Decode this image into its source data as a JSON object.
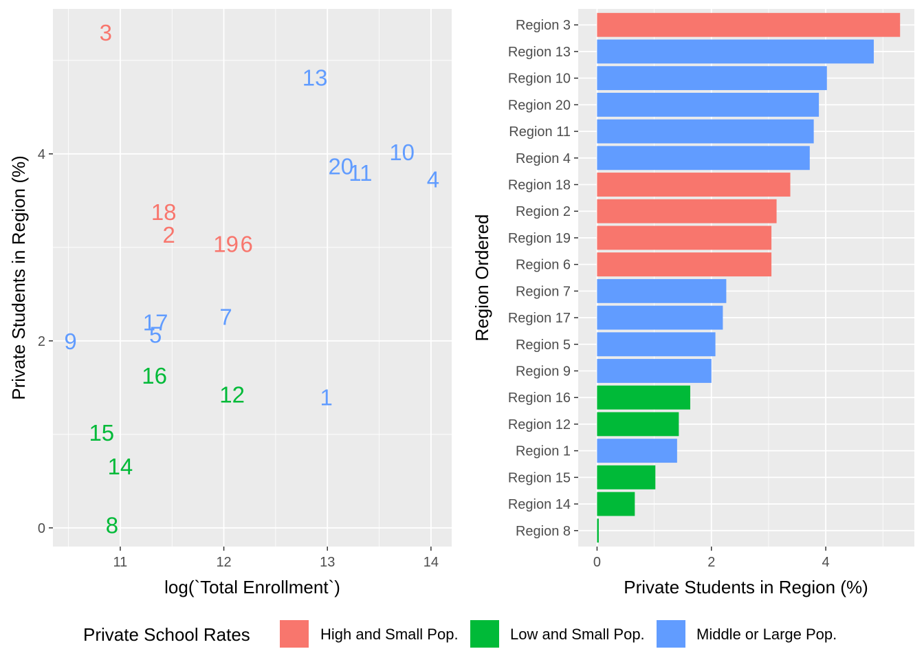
{
  "groups": [
    {
      "name": "High and Small Pop.",
      "color": "#F8766D"
    },
    {
      "name": "Low and Small Pop.",
      "color": "#00BA38"
    },
    {
      "name": "Middle or Large Pop.",
      "color": "#619CFF"
    }
  ],
  "legend": {
    "title": "Private School Rates",
    "position": "bottom"
  },
  "chart_data": [
    {
      "type": "scatter",
      "geom": "text",
      "xlabel": "log(`Total Enrollment`)",
      "ylabel": "Private Students in Region (%)",
      "xlim": [
        10.35,
        14.2
      ],
      "ylim": [
        -0.2,
        5.55
      ],
      "x_ticks": [
        11,
        12,
        13,
        14
      ],
      "y_ticks": [
        0,
        2,
        4
      ],
      "grid": true,
      "points": [
        {
          "label": "3",
          "x": 10.86,
          "y": 5.3,
          "group": 0
        },
        {
          "label": "13",
          "x": 12.88,
          "y": 4.82,
          "group": 2
        },
        {
          "label": "10",
          "x": 13.72,
          "y": 4.02,
          "group": 2
        },
        {
          "label": "20",
          "x": 13.13,
          "y": 3.87,
          "group": 2
        },
        {
          "label": "11",
          "x": 13.32,
          "y": 3.8,
          "group": 2
        },
        {
          "label": "4",
          "x": 14.02,
          "y": 3.73,
          "group": 2
        },
        {
          "label": "18",
          "x": 11.42,
          "y": 3.38,
          "group": 0
        },
        {
          "label": "2",
          "x": 11.47,
          "y": 3.14,
          "group": 0
        },
        {
          "label": "19",
          "x": 12.02,
          "y": 3.04,
          "group": 0
        },
        {
          "label": "6",
          "x": 12.22,
          "y": 3.04,
          "group": 0
        },
        {
          "label": "7",
          "x": 12.02,
          "y": 2.26,
          "group": 2
        },
        {
          "label": "17",
          "x": 11.34,
          "y": 2.2,
          "group": 2
        },
        {
          "label": "5",
          "x": 11.34,
          "y": 2.07,
          "group": 2
        },
        {
          "label": "9",
          "x": 10.52,
          "y": 2.0,
          "group": 2
        },
        {
          "label": "16",
          "x": 11.33,
          "y": 1.63,
          "group": 1
        },
        {
          "label": "12",
          "x": 12.08,
          "y": 1.43,
          "group": 1
        },
        {
          "label": "1",
          "x": 12.99,
          "y": 1.4,
          "group": 2
        },
        {
          "label": "15",
          "x": 10.82,
          "y": 1.02,
          "group": 1
        },
        {
          "label": "14",
          "x": 11.0,
          "y": 0.66,
          "group": 1
        },
        {
          "label": "8",
          "x": 10.92,
          "y": 0.03,
          "group": 1
        }
      ]
    },
    {
      "type": "bar",
      "orientation": "horizontal",
      "xlabel": "Private Students in Region (%)",
      "ylabel": "Region Ordered",
      "xlim": [
        -0.33,
        5.55
      ],
      "x_ticks": [
        0,
        2,
        4
      ],
      "grid": true,
      "bars": [
        {
          "category": "Region 3",
          "value": 5.3,
          "group": 0
        },
        {
          "category": "Region 13",
          "value": 4.84,
          "group": 2
        },
        {
          "category": "Region 10",
          "value": 4.02,
          "group": 2
        },
        {
          "category": "Region 20",
          "value": 3.88,
          "group": 2
        },
        {
          "category": "Region 11",
          "value": 3.79,
          "group": 2
        },
        {
          "category": "Region 4",
          "value": 3.72,
          "group": 2
        },
        {
          "category": "Region 18",
          "value": 3.38,
          "group": 0
        },
        {
          "category": "Region 2",
          "value": 3.14,
          "group": 0
        },
        {
          "category": "Region 19",
          "value": 3.05,
          "group": 0
        },
        {
          "category": "Region 6",
          "value": 3.05,
          "group": 0
        },
        {
          "category": "Region 7",
          "value": 2.26,
          "group": 2
        },
        {
          "category": "Region 17",
          "value": 2.2,
          "group": 2
        },
        {
          "category": "Region 5",
          "value": 2.07,
          "group": 2
        },
        {
          "category": "Region 9",
          "value": 2.0,
          "group": 2
        },
        {
          "category": "Region 16",
          "value": 1.63,
          "group": 1
        },
        {
          "category": "Region 12",
          "value": 1.43,
          "group": 1
        },
        {
          "category": "Region 1",
          "value": 1.4,
          "group": 2
        },
        {
          "category": "Region 15",
          "value": 1.02,
          "group": 1
        },
        {
          "category": "Region 14",
          "value": 0.66,
          "group": 1
        },
        {
          "category": "Region 8",
          "value": 0.03,
          "group": 1
        }
      ]
    }
  ]
}
